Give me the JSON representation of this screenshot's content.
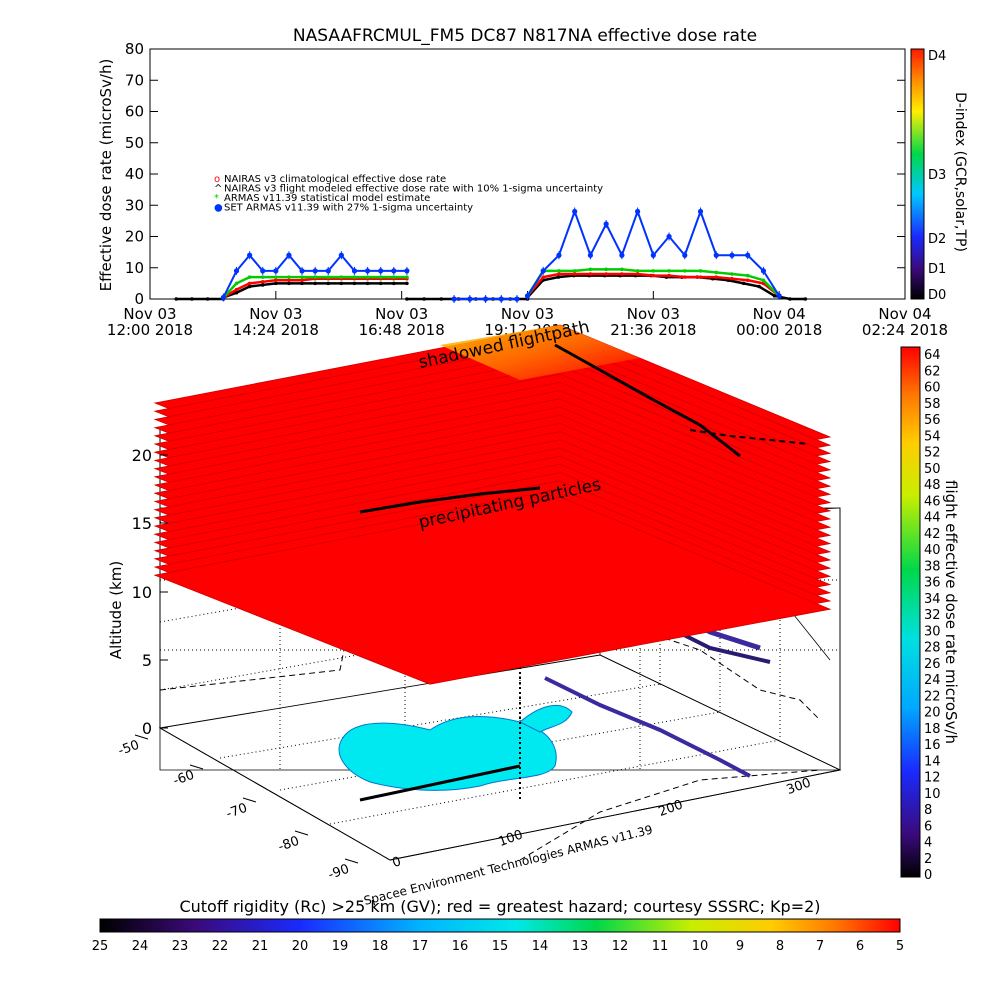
{
  "chart_data": [
    {
      "type": "scatter",
      "title": "NASAAFRCMUL_FM5 DC87 N817NA effective dose rate",
      "ylabel": "Effective dose rate (microSv/h)",
      "ylim": [
        0,
        80
      ],
      "y_ticks": [
        0,
        10,
        20,
        30,
        40,
        50,
        60,
        70,
        80
      ],
      "x_ticks": [
        {
          "l1": "Nov 03",
          "l2": "12:00 2018",
          "h": 12.0
        },
        {
          "l1": "Nov 03",
          "l2": "14:24 2018",
          "h": 14.4
        },
        {
          "l1": "Nov 03",
          "l2": "16:48 2018",
          "h": 16.8
        },
        {
          "l1": "Nov 03",
          "l2": "19:12 2018",
          "h": 19.2
        },
        {
          "l1": "Nov 03",
          "l2": "21:36 2018",
          "h": 21.6
        },
        {
          "l1": "Nov 04",
          "l2": "00:00 2018",
          "h": 24.0
        },
        {
          "l1": "Nov 04",
          "l2": "02:24 2018",
          "h": 26.4
        }
      ],
      "xlim_hours": [
        12.0,
        26.4
      ],
      "legend": [
        {
          "label": "NAIRAS v3 climatological effective dose rate",
          "color": "#ff0000"
        },
        {
          "label": "NAIRAS v3 flight modeled effective dose rate with 10% 1-sigma uncertainty",
          "color": "#000000"
        },
        {
          "label": "ARMAS v11.39 statistical model estimate",
          "color": "#00cc00"
        },
        {
          "label": "SET ARMAS v11.39 with 27% 1-sigma uncertainty",
          "color": "#0033ff"
        }
      ],
      "legend_position": "upper-left",
      "series": [
        {
          "name": "NAIRAS v3 climatological effective dose rate",
          "color": "#ff0000",
          "segments": [
            {
              "start": 13.4,
              "end": 16.9,
              "values": [
                0.5,
                3,
                5,
                5.5,
                6,
                6,
                6,
                6.5,
                6.5,
                6.5,
                6.5,
                6.5,
                6.5,
                6.5,
                6.5
              ]
            },
            {
              "start": 19.2,
              "end": 24.0,
              "values": [
                1,
                7,
                8,
                8,
                8,
                8,
                8,
                8,
                7.5,
                7.5,
                7,
                7,
                7,
                6.5,
                6,
                5,
                1
              ]
            }
          ]
        },
        {
          "name": "NAIRAS v3 flight modeled effective dose rate with 10% 1-sigma uncertainty",
          "color": "#000000",
          "segments": [
            {
              "start": 12.5,
              "end": 13.4,
              "values": [
                0,
                0,
                0,
                0
              ]
            },
            {
              "start": 13.4,
              "end": 16.9,
              "values": [
                0.5,
                2,
                4,
                4.5,
                5,
                5,
                5,
                5,
                5,
                5,
                5,
                5,
                5,
                5,
                5
              ]
            },
            {
              "start": 16.9,
              "end": 19.2,
              "values": [
                0,
                0,
                0,
                0,
                0,
                0,
                0,
                0
              ]
            },
            {
              "start": 19.2,
              "end": 24.5,
              "values": [
                0.5,
                6,
                7,
                7.5,
                7.5,
                7.5,
                7.5,
                7.5,
                7.5,
                7,
                7,
                7,
                6.5,
                6,
                5,
                4,
                1,
                0,
                0
              ]
            }
          ]
        },
        {
          "name": "ARMAS v11.39 statistical model estimate",
          "color": "#00cc00",
          "segments": [
            {
              "start": 13.4,
              "end": 16.9,
              "values": [
                0.5,
                5,
                7,
                7,
                7,
                7,
                7,
                7,
                7,
                7,
                7,
                7,
                7,
                7,
                7
              ]
            },
            {
              "start": 19.2,
              "end": 24.0,
              "values": [
                1,
                9,
                9,
                9,
                9.5,
                9.5,
                9.5,
                9,
                9,
                9,
                9,
                9,
                8.5,
                8,
                7.5,
                6,
                1
              ]
            }
          ]
        },
        {
          "name": "SET ARMAS v11.39 with 27% 1-sigma uncertainty",
          "color": "#0033ff",
          "segments": [
            {
              "start": 13.4,
              "end": 16.9,
              "values": [
                0.5,
                9,
                14,
                9,
                9,
                14,
                9,
                9,
                9,
                14,
                9,
                9,
                9,
                9,
                9
              ]
            },
            {
              "start": 17.8,
              "end": 19.0,
              "values": [
                0,
                0,
                0,
                0,
                0
              ]
            },
            {
              "start": 19.2,
              "end": 24.0,
              "values": [
                1,
                9,
                14,
                28,
                14,
                24,
                14,
                28,
                14,
                20,
                14,
                28,
                14,
                14,
                14,
                9,
                1
              ]
            }
          ]
        }
      ],
      "colorbar": {
        "label": "D-index (GCR,solar,TP)",
        "ticks": [
          "D0",
          "D1",
          "D2",
          "D3",
          "D4"
        ]
      }
    },
    {
      "type": "scatter",
      "zlabel": "Altitude (km)",
      "z_ticks": [
        "0",
        "5",
        "10",
        "15",
        "20"
      ],
      "lat_ticks": [
        "-50",
        "-60",
        "-70",
        "-80",
        "-90"
      ],
      "lon_ticks": [
        "0",
        "100",
        "200",
        "300"
      ],
      "annotations": [
        "shadowed flightpath",
        "precipitating particles",
        "Spacee Environment Technologies ARMAS v11.39"
      ],
      "colorbar": {
        "label": "flight effective dose rate microSv/h",
        "min": 0,
        "max": 64,
        "ticks": [
          "0",
          "2",
          "4",
          "6",
          "8",
          "10",
          "12",
          "14",
          "16",
          "18",
          "20",
          "22",
          "24",
          "26",
          "28",
          "30",
          "32",
          "34",
          "36",
          "38",
          "40",
          "42",
          "44",
          "46",
          "48",
          "50",
          "52",
          "54",
          "56",
          "58",
          "60",
          "62",
          "64"
        ]
      }
    },
    {
      "type": "heatmap",
      "caption": "Cutoff rigidity (Rc) >25 km (GV); red = greatest hazard; courtesy SSSRC; Kp=2)",
      "ticks": [
        "25",
        "24",
        "23",
        "22",
        "21",
        "20",
        "19",
        "18",
        "17",
        "16",
        "15",
        "14",
        "13",
        "12",
        "11",
        "10",
        "9",
        "8",
        "7",
        "6",
        "5"
      ]
    }
  ]
}
